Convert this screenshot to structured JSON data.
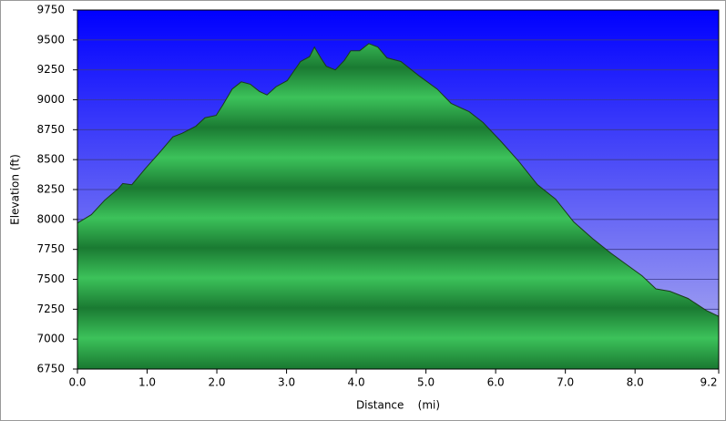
{
  "chart_data": {
    "type": "area",
    "xlabel": "Distance    (mi)",
    "ylabel": "Elevation (ft)",
    "x": [
      0,
      0.2,
      0.39,
      0.59,
      0.65,
      0.78,
      0.98,
      1.18,
      1.37,
      1.5,
      1.7,
      1.83,
      1.99,
      2.09,
      2.22,
      2.35,
      2.48,
      2.61,
      2.72,
      2.85,
      3.01,
      3.2,
      3.33,
      3.4,
      3.49,
      3.57,
      3.7,
      3.83,
      3.92,
      4.05,
      4.18,
      4.31,
      4.44,
      4.64,
      4.9,
      5.16,
      5.36,
      5.62,
      5.82,
      6.08,
      6.34,
      6.6,
      6.86,
      7.12,
      7.39,
      7.65,
      7.91,
      8.1,
      8.3,
      8.5,
      8.76,
      9.02,
      9.2
    ],
    "values": [
      7970,
      8040,
      8160,
      8260,
      8300,
      8290,
      8430,
      8560,
      8690,
      8720,
      8780,
      8850,
      8870,
      8960,
      9090,
      9150,
      9130,
      9070,
      9040,
      9110,
      9160,
      9320,
      9360,
      9440,
      9350,
      9280,
      9250,
      9330,
      9410,
      9410,
      9470,
      9440,
      9350,
      9320,
      9200,
      9090,
      8970,
      8900,
      8810,
      8650,
      8480,
      8290,
      8170,
      7980,
      7840,
      7720,
      7610,
      7530,
      7420,
      7400,
      7340,
      7240,
      7190
    ],
    "color": "#22a040",
    "xlim": [
      0,
      9.2
    ],
    "ylim": [
      6750,
      9750
    ],
    "xticks": [
      {
        "value": 0,
        "label": "0.0"
      },
      {
        "value": 1,
        "label": "1.0"
      },
      {
        "value": 2,
        "label": "2.0"
      },
      {
        "value": 3,
        "label": "3.0"
      },
      {
        "value": 4,
        "label": "4.0"
      },
      {
        "value": 5,
        "label": "5.0"
      },
      {
        "value": 6,
        "label": "6.0"
      },
      {
        "value": 7,
        "label": "7.0"
      },
      {
        "value": 8,
        "label": "8.0"
      },
      {
        "value": 9.2,
        "label": "9.2"
      }
    ],
    "yticks": [
      6750,
      7000,
      7250,
      7500,
      7750,
      8000,
      8250,
      8500,
      8750,
      9000,
      9250,
      9500,
      9750
    ],
    "grid": true
  }
}
